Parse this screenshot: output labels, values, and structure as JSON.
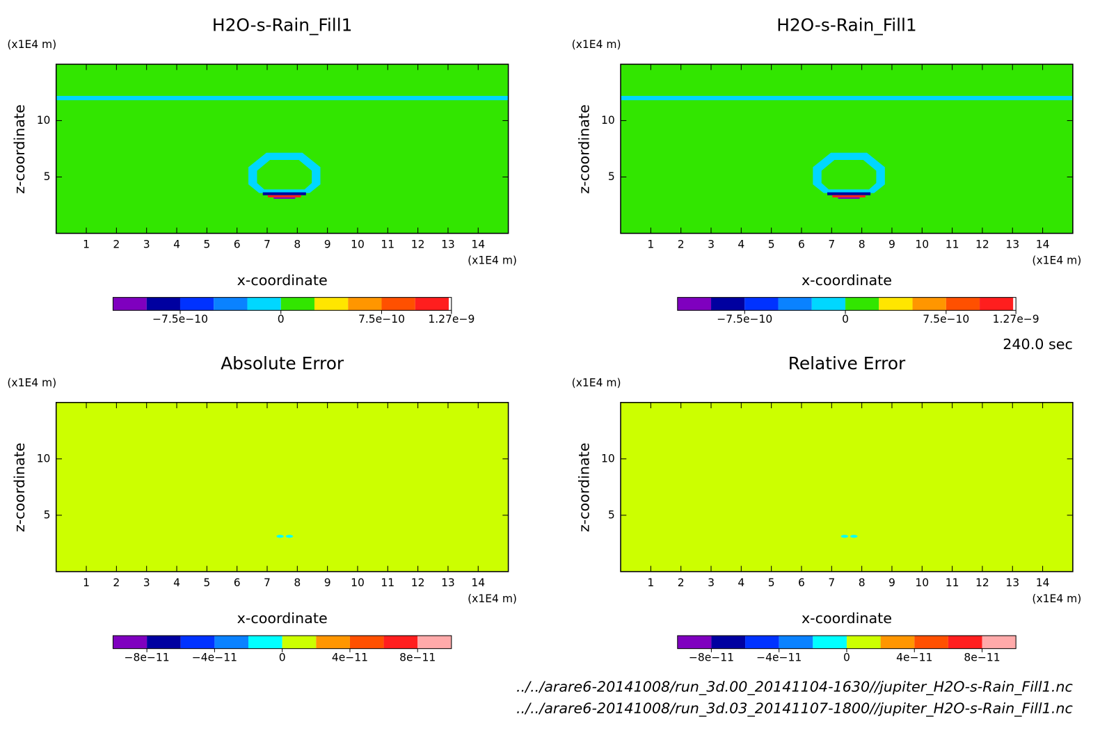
{
  "chart_data": [
    {
      "type": "contour",
      "title": "H2O-s-Rain_Fill1",
      "xlabel": "x-coordinate",
      "ylabel": "z-coordinate",
      "xunit": "(x1E4 m)",
      "yunit": "(x1E4 m)",
      "xlim": [
        0,
        15
      ],
      "ylim": [
        0,
        15
      ],
      "xticks": [
        1,
        2,
        3,
        4,
        5,
        6,
        7,
        8,
        9,
        10,
        11,
        12,
        13,
        14
      ],
      "yticks": [
        5,
        10
      ],
      "colorbar": {
        "levels": [
          -1.25e-09,
          -1e-09,
          -7.5e-10,
          -5e-10,
          -2.5e-10,
          0,
          2.5e-10,
          5e-10,
          7.5e-10,
          1e-09,
          1.25e-09,
          1.27e-09
        ],
        "colors": [
          "#7f00bf",
          "#0000a0",
          "#0032ff",
          "#0a82ff",
          "#00d7ff",
          "#32e600",
          "#ffe600",
          "#ff9600",
          "#ff5000",
          "#ff1e1e",
          "#ffffff"
        ],
        "ticks": [
          {
            "value": -7.5e-10,
            "label": "−7.5e−10"
          },
          0,
          {
            "value": 7.5e-10,
            "label": "7.5e−10"
          },
          {
            "value": 1.27e-09,
            "label": "1.27e−9"
          }
        ]
      }
    },
    {
      "type": "contour",
      "title": "H2O-s-Rain_Fill1",
      "xlabel": "x-coordinate",
      "ylabel": "z-coordinate",
      "xunit": "(x1E4 m)",
      "yunit": "(x1E4 m)",
      "xlim": [
        0,
        15
      ],
      "ylim": [
        0,
        15
      ],
      "xticks": [
        1,
        2,
        3,
        4,
        5,
        6,
        7,
        8,
        9,
        10,
        11,
        12,
        13,
        14
      ],
      "yticks": [
        5,
        10
      ],
      "colorbar": {
        "levels": [
          -1.25e-09,
          -1e-09,
          -7.5e-10,
          -5e-10,
          -2.5e-10,
          0,
          2.5e-10,
          5e-10,
          7.5e-10,
          1e-09,
          1.25e-09,
          1.27e-09
        ],
        "colors": [
          "#7f00bf",
          "#0000a0",
          "#0032ff",
          "#0a82ff",
          "#00d7ff",
          "#32e600",
          "#ffe600",
          "#ff9600",
          "#ff5000",
          "#ff1e1e",
          "#ffffff"
        ],
        "ticks": [
          {
            "value": -7.5e-10,
            "label": "−7.5e−10"
          },
          0,
          {
            "value": 7.5e-10,
            "label": "7.5e−10"
          },
          {
            "value": 1.27e-09,
            "label": "1.27e−9"
          }
        ]
      }
    },
    {
      "type": "contour",
      "title": "Absolute Error",
      "xlabel": "x-coordinate",
      "ylabel": "z-coordinate",
      "xunit": "(x1E4 m)",
      "yunit": "(x1E4 m)",
      "xlim": [
        0,
        15
      ],
      "ylim": [
        0,
        15
      ],
      "xticks": [
        1,
        2,
        3,
        4,
        5,
        6,
        7,
        8,
        9,
        10,
        11,
        12,
        13,
        14
      ],
      "yticks": [
        5,
        10
      ],
      "colorbar": {
        "levels": [
          -1e-10,
          -8e-11,
          -6e-11,
          -4e-11,
          -2e-11,
          0,
          2e-11,
          4e-11,
          6e-11,
          8e-11,
          1e-10
        ],
        "colors": [
          "#7f00bf",
          "#0000a0",
          "#0032ff",
          "#0a82ff",
          "#00ffff",
          "#ccff00",
          "#ff9600",
          "#ff5000",
          "#ff1e1e",
          "#ffaaaa"
        ],
        "ticks": [
          {
            "value": -8e-11,
            "label": "−8e−11"
          },
          {
            "value": -4e-11,
            "label": "−4e−11"
          },
          0,
          {
            "value": 4e-11,
            "label": "4e−11"
          },
          {
            "value": 8e-11,
            "label": "8e−11"
          }
        ]
      }
    },
    {
      "type": "contour",
      "title": "Relative Error",
      "xlabel": "x-coordinate",
      "ylabel": "z-coordinate",
      "xunit": "(x1E4 m)",
      "yunit": "(x1E4 m)",
      "xlim": [
        0,
        15
      ],
      "ylim": [
        0,
        15
      ],
      "xticks": [
        1,
        2,
        3,
        4,
        5,
        6,
        7,
        8,
        9,
        10,
        11,
        12,
        13,
        14
      ],
      "yticks": [
        5,
        10
      ],
      "colorbar": {
        "levels": [
          -1e-10,
          -8e-11,
          -6e-11,
          -4e-11,
          -2e-11,
          0,
          2e-11,
          4e-11,
          6e-11,
          8e-11,
          1e-10
        ],
        "colors": [
          "#7f00bf",
          "#0000a0",
          "#0032ff",
          "#0a82ff",
          "#00ffff",
          "#ccff00",
          "#ff9600",
          "#ff5000",
          "#ff1e1e",
          "#ffaaaa"
        ],
        "ticks": [
          {
            "value": -8e-11,
            "label": "−8e−11"
          },
          {
            "value": -4e-11,
            "label": "−4e−11"
          },
          0,
          {
            "value": 4e-11,
            "label": "4e−11"
          },
          {
            "value": 8e-11,
            "label": "8e−11"
          }
        ]
      }
    }
  ],
  "time": "240.0 sec",
  "files": [
    "../../arare6-20141008/run_3d.00_20141104-1630//jupiter_H2O-s-Rain_Fill1.nc",
    "../../arare6-20141008/run_3d.03_20141107-1800//jupiter_H2O-s-Rain_Fill1.nc"
  ]
}
